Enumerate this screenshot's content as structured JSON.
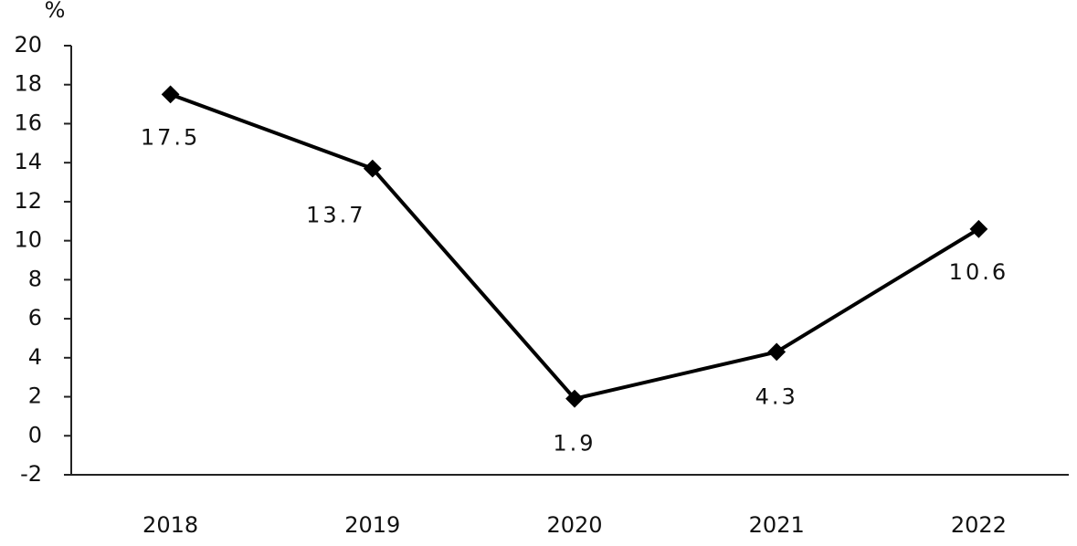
{
  "chart_data": {
    "type": "line",
    "y_label": "%",
    "categories": [
      "2018",
      "2019",
      "2020",
      "2021",
      "2022"
    ],
    "values": [
      17.5,
      13.7,
      1.9,
      4.3,
      10.6
    ],
    "color": "#000000",
    "ylim": [
      -2,
      20
    ],
    "yticks": [
      -2,
      0,
      2,
      4,
      6,
      8,
      10,
      12,
      14,
      16,
      18,
      20
    ],
    "grid": false
  }
}
